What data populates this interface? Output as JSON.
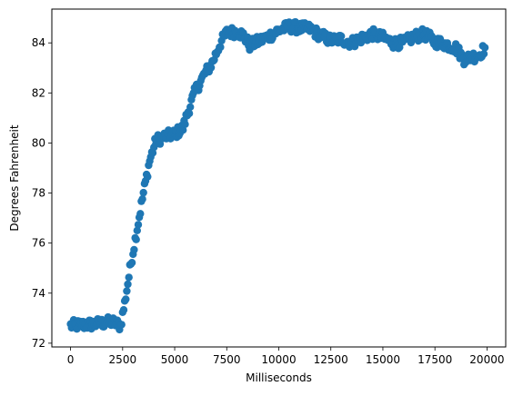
{
  "chart_data": {
    "type": "scatter",
    "title": "",
    "xlabel": "Milliseconds",
    "ylabel": "Degrees Fahrenheit",
    "xlim": [
      -900,
      20900
    ],
    "ylim": [
      71.85,
      85.35
    ],
    "xticks": [
      0,
      2500,
      5000,
      7500,
      10000,
      12500,
      15000,
      17500,
      20000
    ],
    "yticks": [
      72,
      74,
      76,
      78,
      80,
      82,
      84
    ],
    "grid": false,
    "legend": "none",
    "marker_color": "#1f77b4",
    "series": [
      {
        "x_start": 0,
        "x_end": 19900,
        "x_step": 50,
        "trend": [
          [
            0,
            72.7
          ],
          [
            1000,
            72.75
          ],
          [
            2000,
            72.85
          ],
          [
            2400,
            72.7
          ],
          [
            2600,
            73.6
          ],
          [
            2900,
            75.2
          ],
          [
            3200,
            76.6
          ],
          [
            3500,
            78.0
          ],
          [
            3800,
            79.3
          ],
          [
            4100,
            80.1
          ],
          [
            4500,
            80.25
          ],
          [
            5000,
            80.35
          ],
          [
            5400,
            80.6
          ],
          [
            5700,
            81.4
          ],
          [
            6000,
            82.1
          ],
          [
            6400,
            82.7
          ],
          [
            6800,
            83.2
          ],
          [
            7200,
            84.0
          ],
          [
            7500,
            84.4
          ],
          [
            8000,
            84.45
          ],
          [
            8300,
            84.3
          ],
          [
            8600,
            83.9
          ],
          [
            9000,
            84.05
          ],
          [
            9500,
            84.25
          ],
          [
            10000,
            84.5
          ],
          [
            10500,
            84.65
          ],
          [
            11000,
            84.6
          ],
          [
            11500,
            84.55
          ],
          [
            12000,
            84.3
          ],
          [
            12500,
            84.1
          ],
          [
            13000,
            84.15
          ],
          [
            13500,
            84.0
          ],
          [
            14000,
            84.2
          ],
          [
            14500,
            84.35
          ],
          [
            15000,
            84.2
          ],
          [
            15500,
            84.0
          ],
          [
            16000,
            84.0
          ],
          [
            16500,
            84.25
          ],
          [
            17000,
            84.35
          ],
          [
            17500,
            84.05
          ],
          [
            18000,
            83.95
          ],
          [
            18500,
            83.8
          ],
          [
            18900,
            83.35
          ],
          [
            19300,
            83.45
          ],
          [
            19600,
            83.5
          ],
          [
            19900,
            83.8
          ]
        ]
      }
    ]
  }
}
